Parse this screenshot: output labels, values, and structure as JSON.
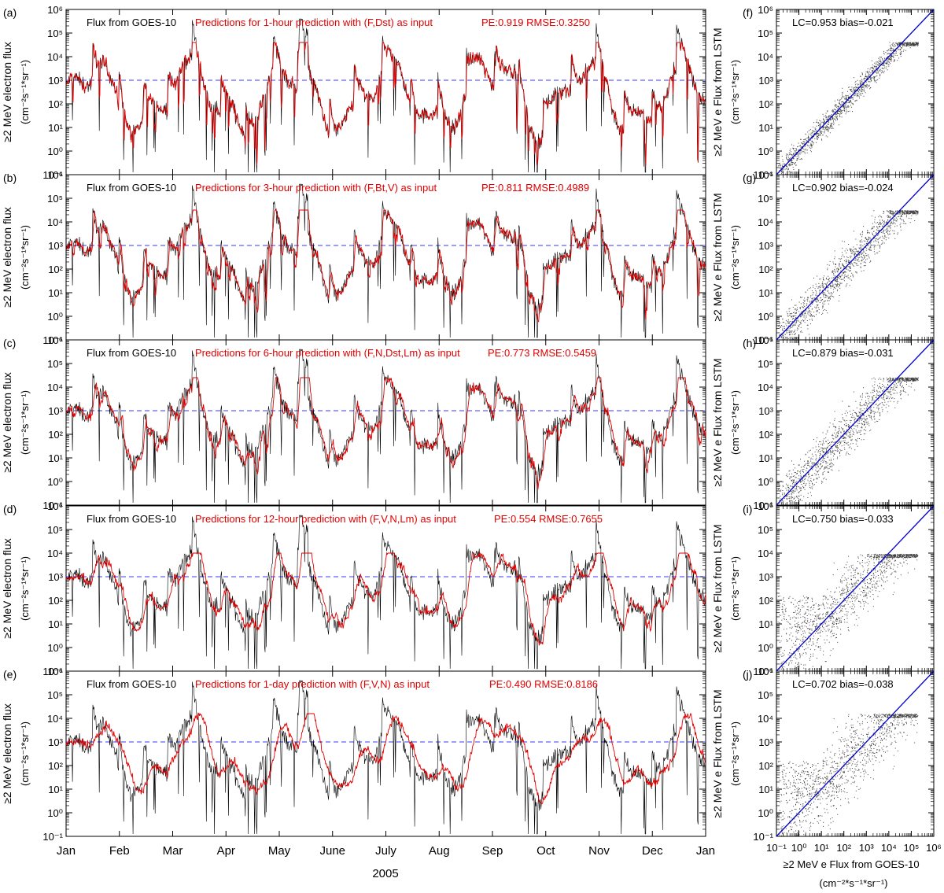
{
  "figure": {
    "year_label": "2005",
    "time_ylabel_line1": "≥2 MeV electron flux",
    "time_ylabel_line2": "(cm⁻²s⁻¹*sr⁻¹)",
    "scatter_ylabel_line1": "≥2 MeV e Flux from LSTM",
    "scatter_ylabel_line2": "(cm⁻²s⁻¹*sr⁻¹)",
    "scatter_xlabel_line1": "≥2 MeV e Flux from GOES-10",
    "scatter_xlabel_line2": "(cm⁻²*s⁻¹*sr⁻¹)",
    "y_tick_labels": [
      "10⁻¹",
      "10⁰",
      "10¹",
      "10²",
      "10³",
      "10⁴",
      "10⁵",
      "10⁶"
    ],
    "months": [
      "Jan",
      "Feb",
      "Mar",
      "Apr",
      "May",
      "June",
      "July",
      "Aug",
      "Sep",
      "Oct",
      "Nov",
      "Dec",
      "Jan"
    ],
    "observed_label": "Flux from GOES-10",
    "colors": {
      "observed": "#000000",
      "predicted": "#e00000",
      "threshold": "#3a3aff",
      "diagonal": "#0000cc"
    }
  },
  "chart_data": [
    {
      "type": "line",
      "panel": "(a)",
      "title": "Predictions for 1-hour prediction with (F,Dst) as input",
      "metrics": "PE:0.919 RMSE:0.3250",
      "ylim": [
        0.1,
        1000000
      ],
      "yscale": "log",
      "threshold": 1000,
      "series": [
        {
          "name": "Flux from GOES-10"
        },
        {
          "name": "Predictions for 1-hour prediction with (F,Dst) as input"
        }
      ]
    },
    {
      "type": "line",
      "panel": "(b)",
      "title": "Predictions for 3-hour prediction with (F,Bt,V) as input",
      "metrics": "PE:0.811 RMSE:0.4989",
      "ylim": [
        0.1,
        1000000
      ],
      "yscale": "log",
      "threshold": 1000,
      "series": [
        {
          "name": "Flux from GOES-10"
        },
        {
          "name": "Predictions for 3-hour prediction with (F,Bt,V) as input"
        }
      ]
    },
    {
      "type": "line",
      "panel": "(c)",
      "title": "Predictions for 6-hour prediction with (F,N,Dst,Lm) as input",
      "metrics": "PE:0.773 RMSE:0.5459",
      "ylim": [
        0.1,
        1000000
      ],
      "yscale": "log",
      "threshold": 1000,
      "series": [
        {
          "name": "Flux from GOES-10"
        },
        {
          "name": "Predictions for 6-hour prediction with (F,N,Dst,Lm) as input"
        }
      ]
    },
    {
      "type": "line",
      "panel": "(d)",
      "title": "Predictions for 12-hour prediction with (F,V,N,Lm) as input",
      "metrics": "PE:0.554 RMSE:0.7655",
      "ylim": [
        0.1,
        1000000
      ],
      "yscale": "log",
      "threshold": 1000,
      "series": [
        {
          "name": "Flux from GOES-10"
        },
        {
          "name": "Predictions for 12-hour prediction with (F,V,N,Lm) as input"
        }
      ]
    },
    {
      "type": "line",
      "panel": "(e)",
      "title": "Predictions for 1-day prediction with (F,V,N) as input",
      "metrics": "PE:0.490 RMSE:0.8186",
      "ylim": [
        0.1,
        1000000
      ],
      "yscale": "log",
      "threshold": 1000,
      "series": [
        {
          "name": "Flux from GOES-10"
        },
        {
          "name": "Predictions for 1-day prediction with (F,V,N) as input"
        }
      ]
    },
    {
      "type": "scatter",
      "panel": "(f)",
      "stats": "LC=0.953   bias=-0.021",
      "xlim": [
        0.1,
        1000000
      ],
      "ylim": [
        0.1,
        1000000
      ],
      "saturation": 40000
    },
    {
      "type": "scatter",
      "panel": "(g)",
      "stats": "LC=0.902   bias=-0.024",
      "xlim": [
        0.1,
        1000000
      ],
      "ylim": [
        0.1,
        1000000
      ],
      "saturation": 30000
    },
    {
      "type": "scatter",
      "panel": "(h)",
      "stats": "LC=0.879   bias=-0.031",
      "xlim": [
        0.1,
        1000000
      ],
      "ylim": [
        0.1,
        1000000
      ],
      "saturation": 25000
    },
    {
      "type": "scatter",
      "panel": "(i)",
      "stats": "LC=0.750   bias=-0.033",
      "xlim": [
        0.1,
        1000000
      ],
      "ylim": [
        0.1,
        1000000
      ],
      "saturation": 9000
    },
    {
      "type": "scatter",
      "panel": "(j)",
      "stats": "LC=0.702   bias=-0.038",
      "xlim": [
        0.1,
        1000000
      ],
      "ylim": [
        0.1,
        1000000
      ],
      "saturation": 15000
    }
  ]
}
